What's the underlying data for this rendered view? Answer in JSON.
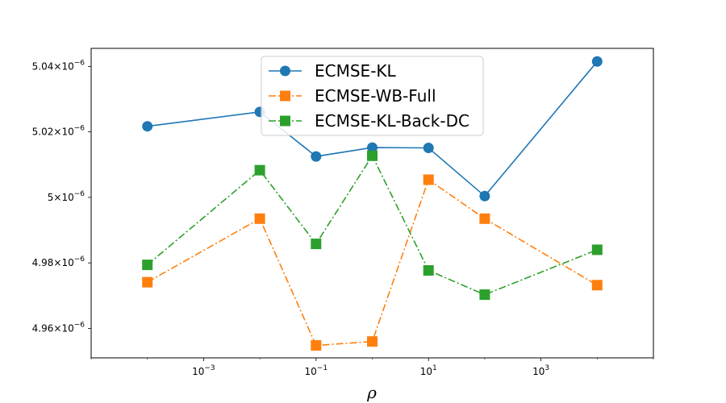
{
  "chart_data": {
    "type": "line",
    "x_scale": "log",
    "xlabel": "ρ",
    "ylabel": "",
    "x": [
      0.0001,
      0.01,
      0.1,
      1,
      10,
      100,
      10000
    ],
    "xlim": [
      1e-05,
      100000
    ],
    "ylim": [
      4.951e-06,
      5.0455e-06
    ],
    "x_ticks": [
      {
        "value": 0.001,
        "base": "10",
        "exp": "−3"
      },
      {
        "value": 0.1,
        "base": "10",
        "exp": "−1"
      },
      {
        "value": 10,
        "base": "10",
        "exp": "1"
      },
      {
        "value": 1000,
        "base": "10",
        "exp": "3"
      }
    ],
    "y_ticks": [
      {
        "value": 4.96e-06,
        "mant": "4.96",
        "exp": "−6"
      },
      {
        "value": 4.98e-06,
        "mant": "4.98",
        "exp": "−6"
      },
      {
        "value": 5e-06,
        "mant": "5",
        "exp": "−6"
      },
      {
        "value": 5.02e-06,
        "mant": "5.02",
        "exp": "−6"
      },
      {
        "value": 5.04e-06,
        "mant": "5.04",
        "exp": "−6"
      }
    ],
    "grid": false,
    "legend_position": "top-center",
    "series": [
      {
        "name": "ECMSE-KL",
        "color": "#1f77b4",
        "marker": "circle",
        "linestyle": "solid",
        "values": [
          5.0217e-06,
          5.0261e-06,
          5.0125e-06,
          5.0152e-06,
          5.0151e-06,
          5.0004e-06,
          5.0415e-06
        ]
      },
      {
        "name": "ECMSE-WB-Full",
        "color": "#ff7f0e",
        "marker": "square",
        "linestyle": "dashdot",
        "values": [
          4.9741e-06,
          4.9935e-06,
          4.9548e-06,
          4.956e-06,
          5.0054e-06,
          4.9935e-06,
          4.9732e-06
        ]
      },
      {
        "name": "ECMSE-KL-Back-DC",
        "color": "#2ca02c",
        "marker": "square",
        "linestyle": "dashdot",
        "values": [
          4.9794e-06,
          5.0083e-06,
          4.9858e-06,
          5.0127e-06,
          4.9777e-06,
          4.9703e-06,
          4.984e-06
        ]
      }
    ]
  }
}
